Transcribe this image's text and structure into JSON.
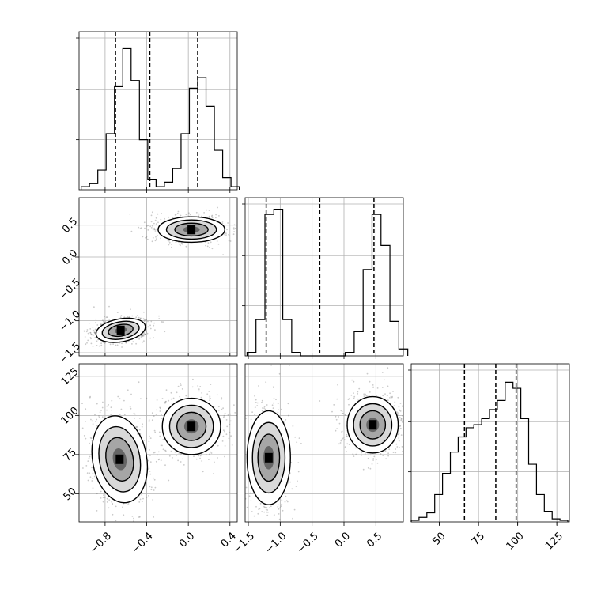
{
  "chart_data": {
    "type": "corner",
    "parameters": [
      {
        "id": "p0",
        "range": [
          -1.05,
          0.47
        ],
        "ticks": [
          -0.8,
          -0.4,
          0.0,
          0.4
        ],
        "tick_labels": [
          "−0.8",
          "−0.4",
          "0.0",
          "0.4"
        ],
        "quantiles": [
          -0.7,
          -0.37,
          0.09
        ],
        "hist_edges": [
          -1.03,
          -0.95,
          -0.87,
          -0.79,
          -0.71,
          -0.63,
          -0.55,
          -0.47,
          -0.39,
          -0.31,
          -0.23,
          -0.15,
          -0.07,
          0.01,
          0.09,
          0.17,
          0.25,
          0.33,
          0.41
        ],
        "hist_counts": [
          2,
          4,
          13,
          37,
          68,
          93,
          72,
          33,
          7,
          2,
          5,
          14,
          37,
          67,
          74,
          55,
          26,
          8,
          2
        ],
        "hist_max": 100
      },
      {
        "id": "p1",
        "range": [
          -1.55,
          0.93
        ],
        "ticks": [
          -1.5,
          -1.0,
          -0.5,
          0.0,
          0.5
        ],
        "tick_labels": [
          "−1.5",
          "−1.0",
          "−0.5",
          "0.0",
          "0.5"
        ],
        "quantiles": [
          -1.22,
          -0.38,
          0.47
        ],
        "hist_edges": [
          -1.52,
          -1.38,
          -1.24,
          -1.1,
          -0.96,
          -0.82,
          -0.68,
          -0.54,
          -0.4,
          -0.26,
          -0.12,
          0.02,
          0.16,
          0.3,
          0.44,
          0.58,
          0.72,
          0.86
        ],
        "hist_counts": [
          2,
          21,
          82,
          85,
          21,
          2,
          0,
          0,
          0,
          0,
          0,
          2,
          14,
          50,
          82,
          64,
          20,
          4
        ],
        "hist_max": 88
      },
      {
        "id": "p2",
        "range": [
          32,
          133
        ],
        "ticks": [
          50,
          75,
          100,
          125
        ],
        "tick_labels": [
          "50",
          "75",
          "100",
          "125"
        ],
        "quantiles": [
          66,
          86,
          99
        ],
        "hist_edges": [
          32,
          37,
          42,
          47,
          52,
          57,
          62,
          67,
          72,
          77,
          82,
          87,
          92,
          97,
          102,
          107,
          112,
          117,
          122,
          127
        ],
        "hist_counts": [
          1,
          3,
          6,
          18,
          32,
          46,
          56,
          62,
          64,
          68,
          74,
          80,
          92,
          88,
          68,
          38,
          18,
          7,
          2,
          1
        ],
        "hist_max": 100
      }
    ],
    "scatter_pairs": [
      {
        "x": "p0",
        "y": "p1",
        "blobs": [
          {
            "cx": -0.65,
            "cy": -1.15,
            "rx": 0.12,
            "ry": 0.09,
            "rot": -10
          },
          {
            "cx": 0.03,
            "cy": 0.43,
            "rx": 0.16,
            "ry": 0.1,
            "rot": 0
          }
        ]
      },
      {
        "x": "p0",
        "y": "p2",
        "blobs": [
          {
            "cx": -0.66,
            "cy": 72,
            "rx": 0.13,
            "ry": 14,
            "rot": -10
          },
          {
            "cx": 0.03,
            "cy": 93,
            "rx": 0.14,
            "ry": 9,
            "rot": 0
          }
        ]
      },
      {
        "x": "p1",
        "y": "p2",
        "blobs": [
          {
            "cx": -1.18,
            "cy": 73,
            "rx": 0.17,
            "ry": 15,
            "rot": 0
          },
          {
            "cx": 0.45,
            "cy": 94,
            "rx": 0.2,
            "ry": 9,
            "rot": 0
          }
        ]
      }
    ],
    "contour_levels": [
      0.5,
      1.0,
      1.5,
      2.0
    ]
  }
}
